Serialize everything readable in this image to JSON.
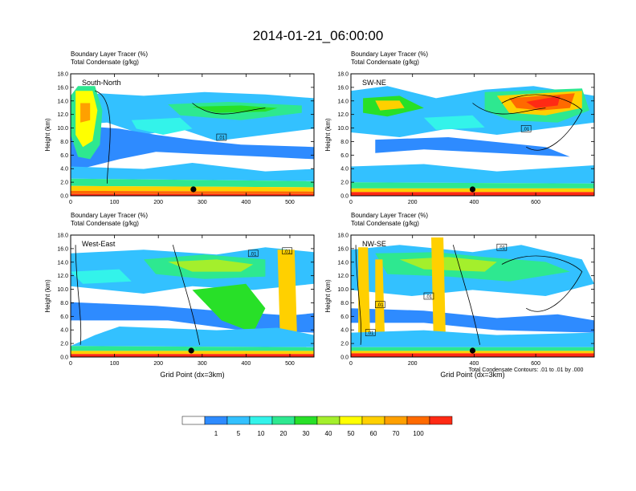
{
  "title": "2014-01-21_06:00:00",
  "footnote": "Total Condensate Contours: .01 to .01 by .000",
  "colorbar": {
    "colors": [
      "#ffffff",
      "#2e8bff",
      "#33c1ff",
      "#33f3ea",
      "#2ee890",
      "#28e028",
      "#a4ef2c",
      "#ffff00",
      "#ffd000",
      "#ffa000",
      "#ff6a00",
      "#ff2a14"
    ],
    "labels": [
      "1",
      "5",
      "10",
      "20",
      "30",
      "40",
      "50",
      "60",
      "70",
      "100"
    ]
  },
  "chart_data": [
    {
      "type": "heatmap",
      "header": [
        "Boundary Layer Tracer    (%)",
        "Total Condensate    (g/kg)"
      ],
      "label": "South-North",
      "xlabel": "",
      "ylabel": "Height (km)",
      "xlim": [
        0,
        555
      ],
      "ylim": [
        0,
        18
      ],
      "xticks": [
        "0",
        "100",
        "200",
        "300",
        "400",
        "500"
      ],
      "yticks": [
        "0.0",
        "2.0",
        "4.0",
        "6.0",
        "8.0",
        "10.0",
        "12.0",
        "14.0",
        "16.0",
        "18.0"
      ],
      "marker_x": 280,
      "contour_labels": [
        ".01"
      ]
    },
    {
      "type": "heatmap",
      "header": [
        "Boundary Layer Tracer    (%)",
        "Total Condensate    (g/kg)"
      ],
      "label": "SW-NE",
      "xlabel": "",
      "ylabel": "Height (km)",
      "xlim": [
        0,
        790
      ],
      "ylim": [
        0,
        18
      ],
      "xticks": [
        "0",
        "200",
        "400",
        "600"
      ],
      "yticks": [
        "0.0",
        "2.0",
        "4.0",
        "6.0",
        "8.0",
        "10.0",
        "12.0",
        "14.0",
        "16.0",
        "18.0"
      ],
      "marker_x": 395,
      "contour_labels": [
        ".01"
      ]
    },
    {
      "type": "heatmap",
      "header": [
        "Boundary Layer Tracer    (%)",
        "Total Condensate    (g/kg)"
      ],
      "label": "West-East",
      "xlabel": "Grid Point (dx=3km)",
      "ylabel": "Height (km)",
      "xlim": [
        0,
        555
      ],
      "ylim": [
        0,
        18
      ],
      "xticks": [
        "0",
        "100",
        "200",
        "300",
        "400",
        "500"
      ],
      "yticks": [
        "0.0",
        "2.0",
        "4.0",
        "6.0",
        "8.0",
        "10.0",
        "12.0",
        "14.0",
        "16.0",
        "18.0"
      ],
      "marker_x": 275,
      "contour_labels": [
        ".01",
        ".01"
      ]
    },
    {
      "type": "heatmap",
      "header": [
        "Boundary Layer Tracer    (%)",
        "Total Condensate    (g/kg)"
      ],
      "label": "NW-SE",
      "xlabel": "Grid Point (dx=3km)",
      "ylabel": "Height (km)",
      "xlim": [
        0,
        790
      ],
      "ylim": [
        0,
        18
      ],
      "xticks": [
        "0",
        "200",
        "400",
        "600"
      ],
      "yticks": [
        "0.0",
        "2.0",
        "4.0",
        "6.0",
        "8.0",
        "10.0",
        "12.0",
        "14.0",
        "16.0",
        "18.0"
      ],
      "marker_x": 395,
      "contour_labels": [
        ".01",
        ".01",
        ".01",
        ".01"
      ]
    }
  ]
}
